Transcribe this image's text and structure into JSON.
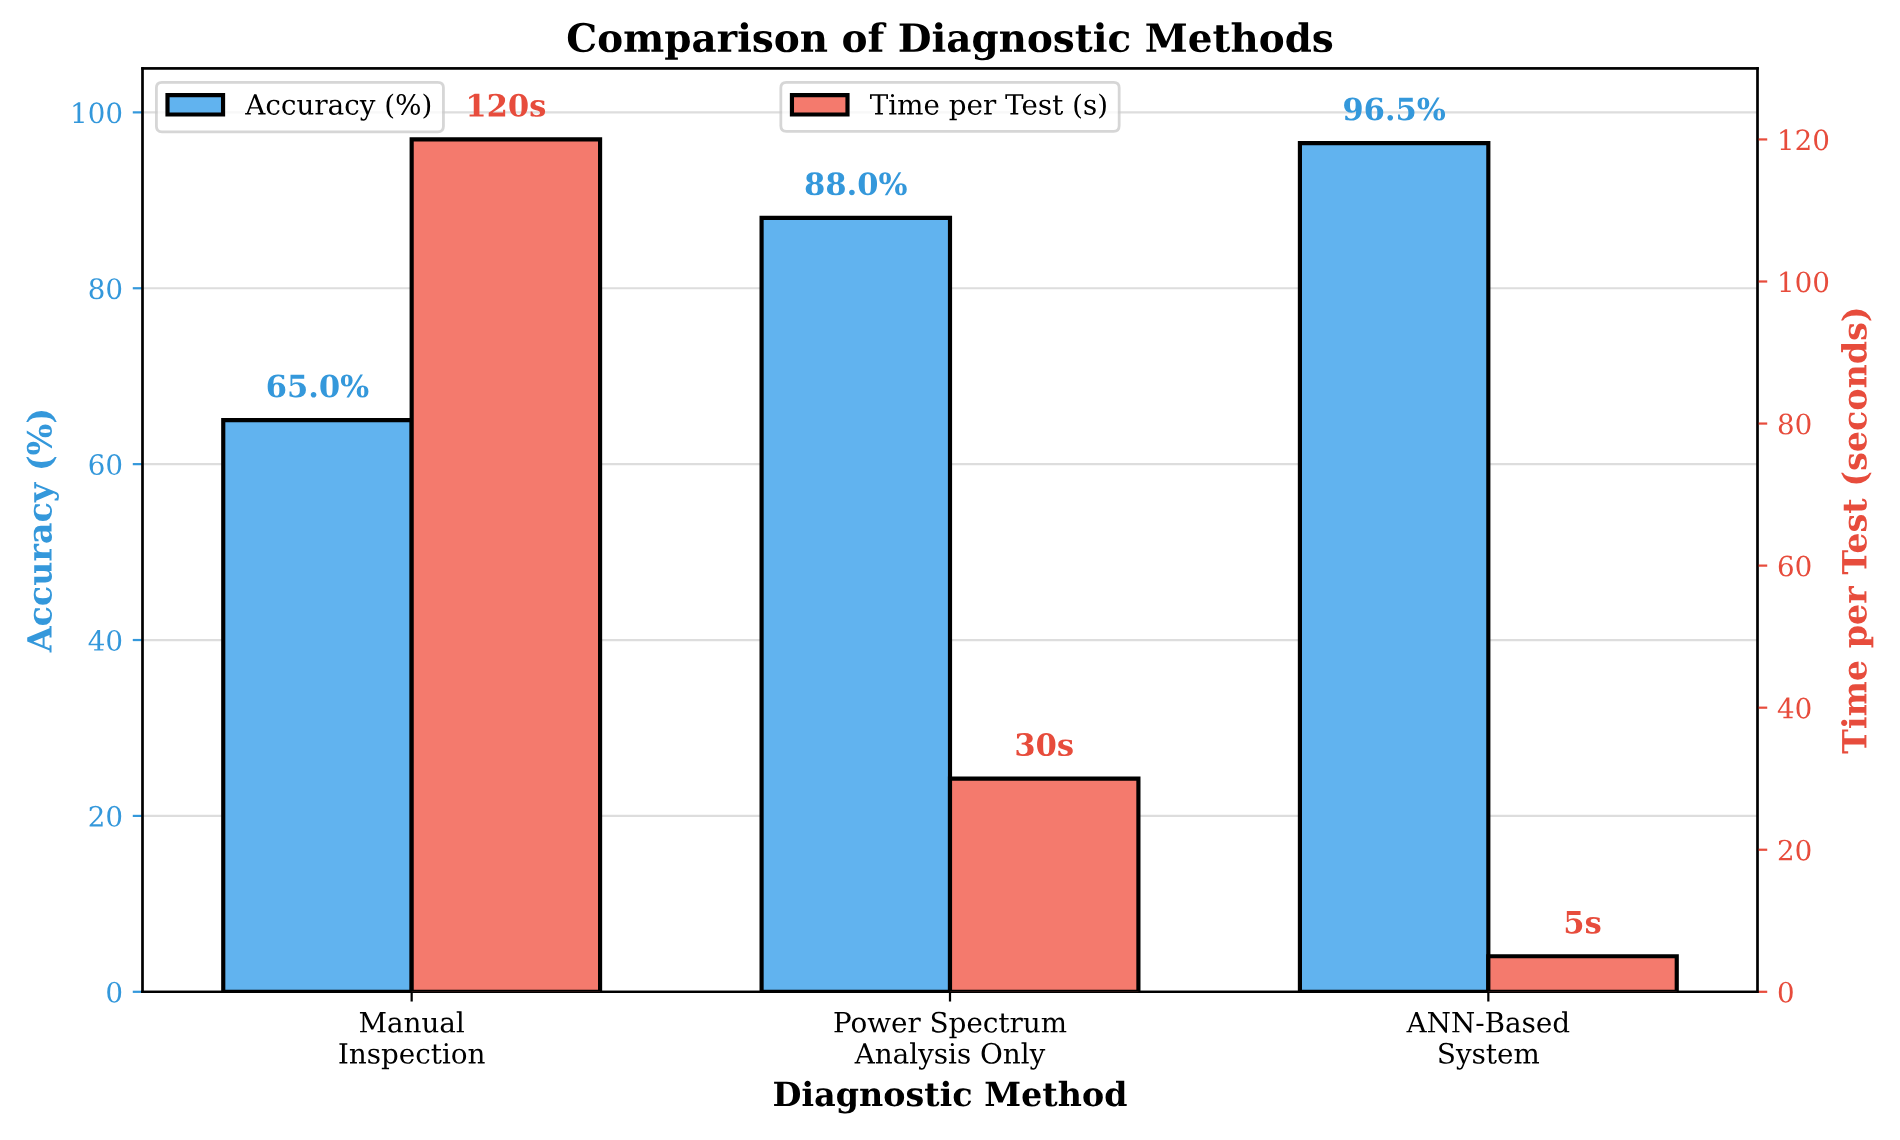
{
  "chart_data": {
    "type": "bar",
    "title": "Comparison of Diagnostic Methods",
    "xlabel": "Diagnostic Method",
    "ylabel": "Accuracy (%)",
    "y2label": "Time per Test (seconds)",
    "categories": [
      "Manual\nInspection",
      "Power Spectrum\nAnalysis Only",
      "ANN-Based\nSystem"
    ],
    "series": [
      {
        "name": "Accuracy (%)",
        "color": "#61b3ef",
        "values": [
          65.0,
          88.0,
          96.5
        ],
        "value_labels": [
          "65.0%",
          "88.0%",
          "96.5%"
        ]
      },
      {
        "name": "Time per Test (s)",
        "color": "#f47a6d",
        "values": [
          120,
          30,
          5
        ],
        "axis": "y2",
        "value_labels": [
          "120s",
          "30s",
          "5s"
        ]
      }
    ],
    "ylim": [
      0,
      105
    ],
    "yticks": [
      0,
      20,
      40,
      60,
      80,
      100
    ],
    "y2lim": [
      0,
      130
    ],
    "y2ticks": [
      0,
      20,
      40,
      60,
      80,
      100,
      120
    ],
    "grid": "y",
    "legend": "top"
  }
}
